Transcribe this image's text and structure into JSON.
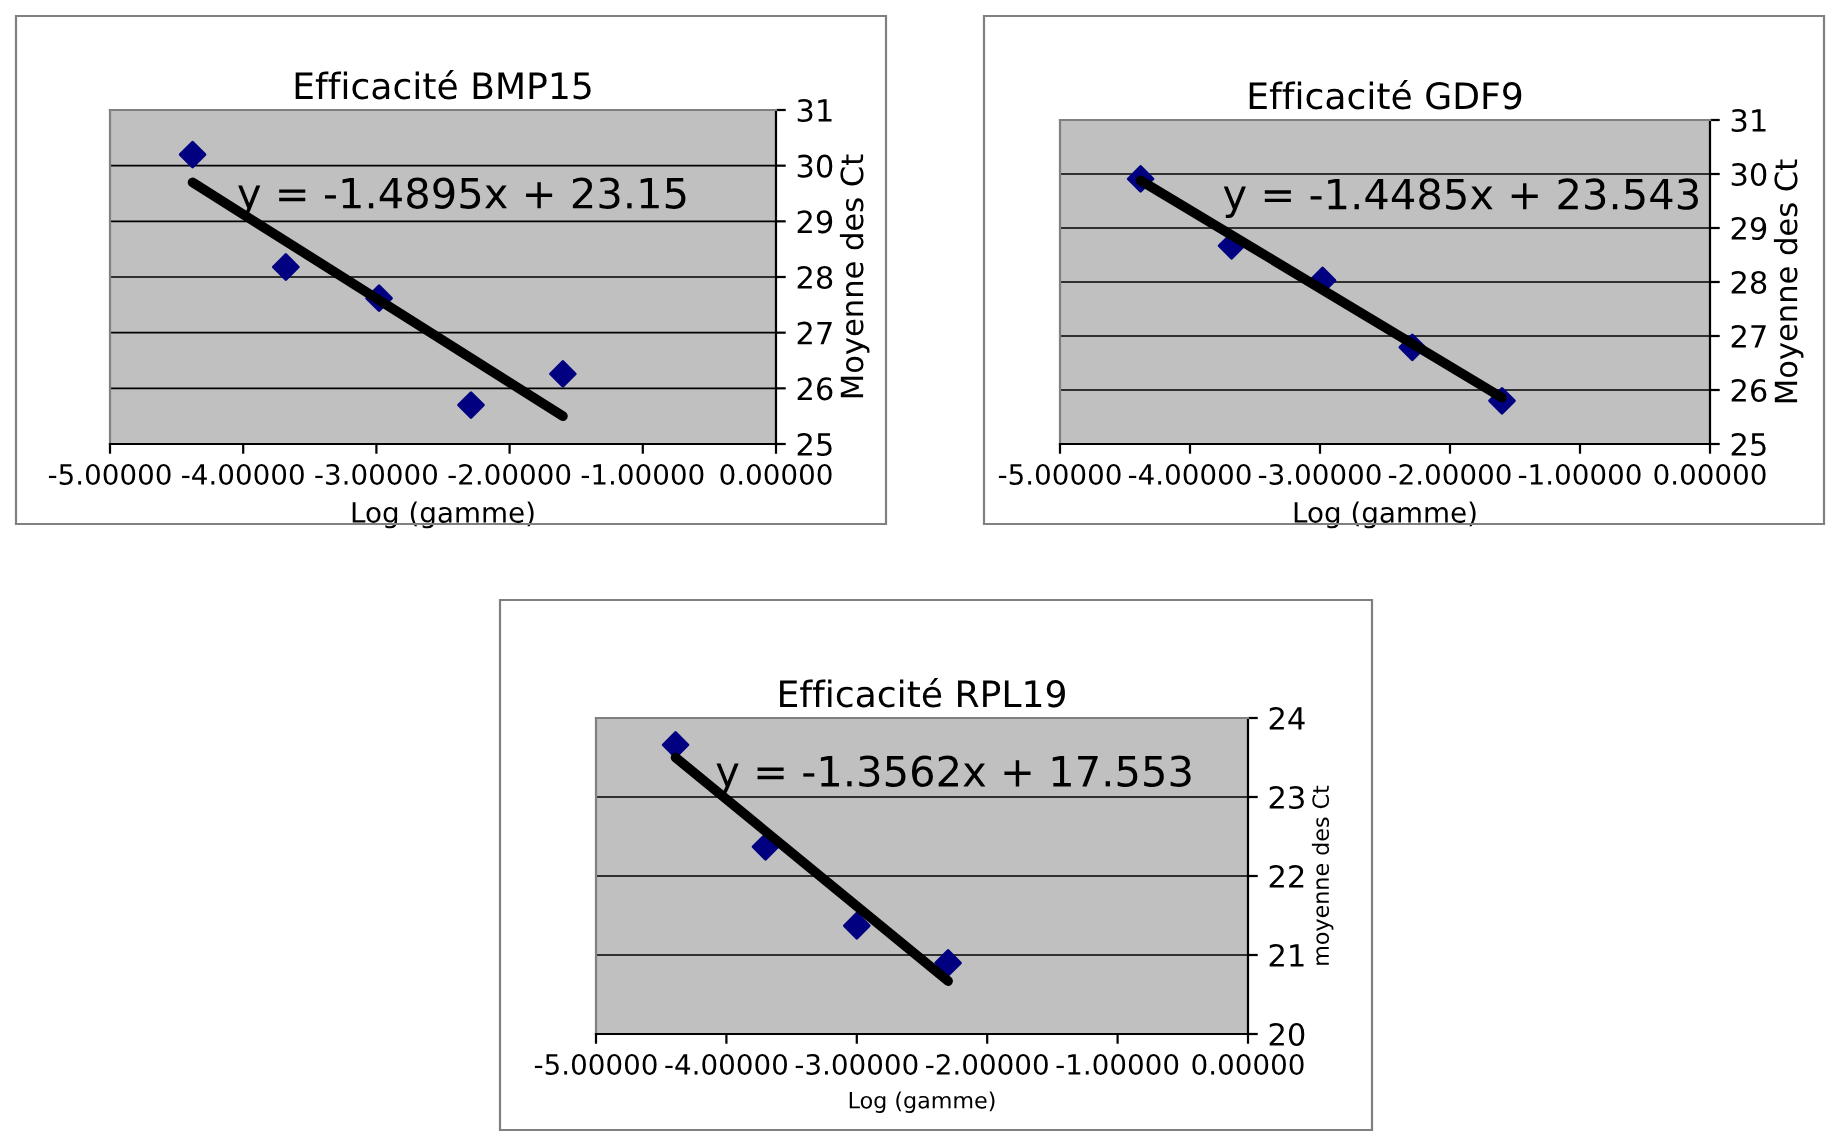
{
  "chart_data": [
    {
      "type": "scatter",
      "title": "Efficacité BMP15",
      "xlabel": "Log (gamme)",
      "ylabel": "Moyenne des Ct",
      "annotations": [
        "y = -1.4895x + 23.15"
      ],
      "grid": "y",
      "legend": false,
      "xlim": [
        -5,
        0
      ],
      "xticks": [
        {
          "value": -5,
          "label": "-5.00000"
        },
        {
          "value": -4,
          "label": "-4.00000"
        },
        {
          "value": -3,
          "label": "-3.00000"
        },
        {
          "value": -2,
          "label": "-2.00000"
        },
        {
          "value": -1,
          "label": "-1.00000"
        },
        {
          "value": 0,
          "label": "0.00000"
        }
      ],
      "ylim": [
        25,
        31
      ],
      "yticks": [
        25,
        26,
        27,
        28,
        29,
        30,
        31
      ],
      "series": [
        {
          "marker": "diamond",
          "color": "#000080",
          "x": [
            -4.38,
            -3.68,
            -2.98,
            -2.29,
            -1.6
          ],
          "values": [
            30.2,
            28.18,
            27.62,
            25.7,
            26.26
          ]
        },
        {
          "type": "line",
          "marker": "none",
          "color": "#000000",
          "x": [
            -4.38,
            -1.6
          ],
          "values": [
            29.7,
            25.5
          ]
        }
      ]
    },
    {
      "type": "scatter",
      "title": "Efficacité GDF9",
      "xlabel": "Log (gamme)",
      "ylabel": "Moyenne des Ct",
      "annotations": [
        "y = -1.4485x + 23.543"
      ],
      "grid": "y",
      "legend": false,
      "xlim": [
        -5,
        0
      ],
      "xticks": [
        {
          "value": -5,
          "label": "-5.00000"
        },
        {
          "value": -4,
          "label": "-4.00000"
        },
        {
          "value": -3,
          "label": "-3.00000"
        },
        {
          "value": -2,
          "label": "-2.00000"
        },
        {
          "value": -1,
          "label": "-1.00000"
        },
        {
          "value": 0,
          "label": "0.00000"
        }
      ],
      "ylim": [
        25,
        31
      ],
      "yticks": [
        25,
        26,
        27,
        28,
        29,
        30,
        31
      ],
      "series": [
        {
          "marker": "diamond",
          "color": "#000080",
          "x": [
            -4.38,
            -3.68,
            -2.98,
            -2.29,
            -1.6
          ],
          "values": [
            29.91,
            28.67,
            28.03,
            26.79,
            25.8
          ]
        },
        {
          "type": "line",
          "marker": "none",
          "color": "#000000",
          "x": [
            -4.38,
            -1.6
          ],
          "values": [
            29.88,
            25.86
          ]
        }
      ]
    },
    {
      "type": "scatter",
      "title": "Efficacité RPL19",
      "xlabel": "Log (gamme)",
      "ylabel": "moyenne des Ct",
      "annotations": [
        "y = -1.3562x + 17.553"
      ],
      "grid": "y",
      "legend": false,
      "xlim": [
        -5,
        0
      ],
      "xticks": [
        {
          "value": -5,
          "label": "-5.00000"
        },
        {
          "value": -4,
          "label": "-4.00000"
        },
        {
          "value": -3,
          "label": "-3.00000"
        },
        {
          "value": -2,
          "label": "-2.00000"
        },
        {
          "value": -1,
          "label": "-1.00000"
        },
        {
          "value": 0,
          "label": "0.00000"
        }
      ],
      "ylim": [
        20,
        24
      ],
      "yticks": [
        20,
        21,
        22,
        23,
        24
      ],
      "series": [
        {
          "marker": "diamond",
          "color": "#000080",
          "x": [
            -4.39,
            -3.7,
            -3.0,
            -2.3
          ],
          "values": [
            23.66,
            22.37,
            21.37,
            20.9
          ]
        },
        {
          "type": "line",
          "marker": "none",
          "color": "#000000",
          "x": [
            -4.39,
            -2.3
          ],
          "values": [
            23.5,
            20.67
          ]
        }
      ]
    }
  ]
}
